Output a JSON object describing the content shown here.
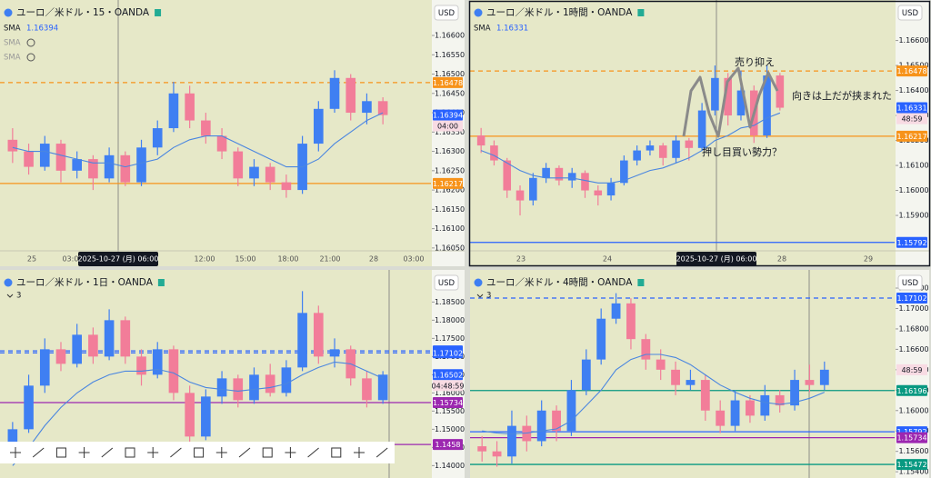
{
  "chart_data": [
    {
      "type": "candlestick",
      "title": "ユーロ／米ドル・15・OANDA",
      "currency": "USD",
      "indicators": [
        {
          "name": "SMA",
          "value": 1.16394
        },
        {
          "name": "SMA"
        },
        {
          "name": "SMA"
        }
      ],
      "ylim": [
        1.16045,
        1.1668
      ],
      "yticks": [
        {
          "value": 1.166,
          "label": "1.16600"
        },
        {
          "value": 1.1655,
          "label": "1.16550"
        },
        {
          "value": 1.165,
          "label": "1.16500"
        },
        {
          "value": 1.1645,
          "label": "1.16450"
        },
        {
          "value": 1.164,
          "label": "1.16400"
        },
        {
          "value": 1.1635,
          "label": "1.16350"
        },
        {
          "value": 1.163,
          "label": "1.16300"
        },
        {
          "value": 1.1625,
          "label": "1.16250"
        },
        {
          "value": 1.162,
          "label": "1.16200"
        },
        {
          "value": 1.1615,
          "label": "1.16150"
        },
        {
          "value": 1.161,
          "label": "1.16100"
        },
        {
          "value": 1.1605,
          "label": "1.16050"
        }
      ],
      "time_labels": [
        "25",
        "03:00",
        "12:00",
        "15:00",
        "18:00",
        "21:00",
        "28",
        "03:00"
      ],
      "crosshair_label": "2025-10-27 (月)  06:00",
      "countdown": "04:00",
      "levels": [
        {
          "value": 1.16478,
          "color": "#f7931a",
          "style": "dashed"
        },
        {
          "value": 1.16217,
          "color": "#f7931a",
          "style": "solid"
        }
      ],
      "up_color": "#3f7ff2",
      "down_color": "#f27d99",
      "sma_color": "#4a86e0",
      "ohlc": [
        [
          1.1633,
          1.1636,
          1.1627,
          1.163
        ],
        [
          1.163,
          1.1632,
          1.1624,
          1.1626
        ],
        [
          1.1626,
          1.1634,
          1.1625,
          1.1632
        ],
        [
          1.1632,
          1.1633,
          1.1622,
          1.1625
        ],
        [
          1.1625,
          1.163,
          1.1623,
          1.1628
        ],
        [
          1.1628,
          1.1629,
          1.162,
          1.1623
        ],
        [
          1.1623,
          1.1631,
          1.1622,
          1.1629
        ],
        [
          1.1629,
          1.163,
          1.1621,
          1.1622
        ],
        [
          1.1622,
          1.1633,
          1.1621,
          1.1631
        ],
        [
          1.1631,
          1.1638,
          1.1629,
          1.1636
        ],
        [
          1.1636,
          1.1648,
          1.1635,
          1.1645
        ],
        [
          1.1645,
          1.1647,
          1.1636,
          1.1638
        ],
        [
          1.1638,
          1.164,
          1.1632,
          1.1634
        ],
        [
          1.1634,
          1.1636,
          1.1628,
          1.163
        ],
        [
          1.163,
          1.1631,
          1.1621,
          1.1623
        ],
        [
          1.1623,
          1.1628,
          1.1621,
          1.1626
        ],
        [
          1.1626,
          1.1627,
          1.162,
          1.1622
        ],
        [
          1.1622,
          1.1624,
          1.1618,
          1.162
        ],
        [
          1.162,
          1.1634,
          1.1619,
          1.1632
        ],
        [
          1.1632,
          1.1643,
          1.163,
          1.1641
        ],
        [
          1.1641,
          1.1651,
          1.164,
          1.1649
        ],
        [
          1.1649,
          1.165,
          1.1638,
          1.164
        ],
        [
          1.164,
          1.1645,
          1.1637,
          1.1643
        ],
        [
          1.1643,
          1.1644,
          1.1637,
          1.16394
        ]
      ],
      "sma": [
        1.1631,
        1.163,
        1.163,
        1.1629,
        1.1628,
        1.1627,
        1.1627,
        1.1626,
        1.1627,
        1.1628,
        1.1631,
        1.1633,
        1.1634,
        1.1634,
        1.1632,
        1.163,
        1.1628,
        1.1626,
        1.1626,
        1.1628,
        1.1632,
        1.1635,
        1.1638,
        1.164
      ]
    },
    {
      "type": "candlestick",
      "title": "ユーロ／米ドル・1時間・OANDA",
      "currency": "USD",
      "indicators": [
        {
          "name": "SMA",
          "value": 1.16331
        }
      ],
      "ylim": [
        1.15762,
        1.16733
      ],
      "yticks": [
        {
          "value": 1.166,
          "label": "1.16600"
        },
        {
          "value": 1.165,
          "label": "1.16500"
        },
        {
          "value": 1.164,
          "label": "1.16400"
        },
        {
          "value": 1.163,
          "label": "1.16300"
        },
        {
          "value": 1.162,
          "label": "1.16200"
        },
        {
          "value": 1.161,
          "label": "1.16100"
        },
        {
          "value": 1.16,
          "label": "1.16000"
        },
        {
          "value": 1.159,
          "label": "1.15900"
        }
      ],
      "time_labels": [
        "23",
        "24",
        "28",
        "29"
      ],
      "crosshair_label": "2025-10-27 (月)  06:00",
      "countdown": "48:59",
      "annotations": [
        "売り抑え",
        "向きは上だが挟まれた",
        "押し目買い勢力？"
      ],
      "levels": [
        {
          "value": 1.16478,
          "color": "#f7931a",
          "style": "dashed"
        },
        {
          "value": 1.16217,
          "color": "#f7931a",
          "style": "solid"
        },
        {
          "value": 1.15792,
          "color": "#2962ff",
          "style": "solid"
        }
      ],
      "up_color": "#3f7ff2",
      "down_color": "#f27d99",
      "sma_color": "#4a86e0",
      "ohlc": [
        [
          1.1622,
          1.1625,
          1.1615,
          1.1618
        ],
        [
          1.1618,
          1.162,
          1.161,
          1.1612
        ],
        [
          1.1612,
          1.1613,
          1.1597,
          1.16
        ],
        [
          1.16,
          1.1602,
          1.159,
          1.1596
        ],
        [
          1.1596,
          1.1607,
          1.1594,
          1.1605
        ],
        [
          1.1605,
          1.1611,
          1.1603,
          1.1609
        ],
        [
          1.1609,
          1.161,
          1.1602,
          1.1604
        ],
        [
          1.1604,
          1.1609,
          1.1601,
          1.1607
        ],
        [
          1.1607,
          1.1608,
          1.1597,
          1.16
        ],
        [
          1.16,
          1.1602,
          1.1594,
          1.1598
        ],
        [
          1.1598,
          1.1605,
          1.1596,
          1.1603
        ],
        [
          1.1603,
          1.1614,
          1.1602,
          1.1612
        ],
        [
          1.1612,
          1.1618,
          1.161,
          1.1616
        ],
        [
          1.1616,
          1.162,
          1.1614,
          1.1618
        ],
        [
          1.1618,
          1.1619,
          1.161,
          1.1613
        ],
        [
          1.1613,
          1.1622,
          1.1611,
          1.162
        ],
        [
          1.162,
          1.1621,
          1.1612,
          1.1617
        ],
        [
          1.1617,
          1.1635,
          1.1616,
          1.1632
        ],
        [
          1.1632,
          1.165,
          1.163,
          1.1645
        ],
        [
          1.1645,
          1.1647,
          1.1626,
          1.163
        ],
        [
          1.163,
          1.1648,
          1.1628,
          1.164
        ],
        [
          1.164,
          1.1642,
          1.1619,
          1.1622
        ],
        [
          1.1622,
          1.165,
          1.1621,
          1.1646
        ],
        [
          1.1646,
          1.1647,
          1.1632,
          1.16331
        ]
      ],
      "sma": [
        1.1616,
        1.1614,
        1.1611,
        1.1608,
        1.1606,
        1.1605,
        1.1605,
        1.1605,
        1.1604,
        1.1603,
        1.1603,
        1.1604,
        1.1606,
        1.1608,
        1.1609,
        1.1611,
        1.1613,
        1.1616,
        1.162,
        1.1622,
        1.1625,
        1.1626,
        1.1629,
        1.1631
      ]
    },
    {
      "type": "candlestick",
      "title": "ユーロ／米ドル・1日・OANDA",
      "currency": "USD",
      "hidden_indicators": 3,
      "ylim": [
        1.13659,
        1.19059
      ],
      "yticks": [
        {
          "value": 1.185,
          "label": "1.18500"
        },
        {
          "value": 1.18,
          "label": "1.18000"
        },
        {
          "value": 1.175,
          "label": "1.17500"
        },
        {
          "value": 1.17,
          "label": "1.17000"
        },
        {
          "value": 1.165,
          "label": "1.16500"
        },
        {
          "value": 1.16,
          "label": "1.16000"
        },
        {
          "value": 1.155,
          "label": "1.15500"
        },
        {
          "value": 1.15,
          "label": "1.15000"
        },
        {
          "value": 1.145,
          "label": "1.14500"
        },
        {
          "value": 1.14,
          "label": "1.14000"
        }
      ],
      "countdown": "04:48:59",
      "levels": [
        {
          "value": 1.17155,
          "color": "#2962ff",
          "style": "dashed"
        },
        {
          "value": 1.17102,
          "color": "#2962ff",
          "style": "dashed"
        },
        {
          "value": 1.15734,
          "color": "#9c27b0",
          "style": "solid"
        },
        {
          "value": 1.1458,
          "color": "#9c27b0",
          "style": "solid"
        }
      ],
      "up_color": "#3f7ff2",
      "down_color": "#f27d99",
      "sma_color": "#4a86e0",
      "ohlc": [
        [
          1.145,
          1.152,
          1.142,
          1.15
        ],
        [
          1.15,
          1.165,
          1.149,
          1.162
        ],
        [
          1.162,
          1.175,
          1.16,
          1.172
        ],
        [
          1.172,
          1.174,
          1.166,
          1.168
        ],
        [
          1.168,
          1.179,
          1.167,
          1.176
        ],
        [
          1.176,
          1.178,
          1.168,
          1.17
        ],
        [
          1.17,
          1.183,
          1.169,
          1.18
        ],
        [
          1.18,
          1.181,
          1.168,
          1.17
        ],
        [
          1.17,
          1.172,
          1.162,
          1.165
        ],
        [
          1.165,
          1.174,
          1.164,
          1.172
        ],
        [
          1.172,
          1.173,
          1.158,
          1.16
        ],
        [
          1.16,
          1.162,
          1.142,
          1.148
        ],
        [
          1.148,
          1.161,
          1.147,
          1.159
        ],
        [
          1.159,
          1.166,
          1.157,
          1.164
        ],
        [
          1.164,
          1.165,
          1.156,
          1.158
        ],
        [
          1.158,
          1.167,
          1.157,
          1.165
        ],
        [
          1.165,
          1.168,
          1.159,
          1.16
        ],
        [
          1.16,
          1.169,
          1.159,
          1.167
        ],
        [
          1.167,
          1.188,
          1.166,
          1.182
        ],
        [
          1.182,
          1.184,
          1.168,
          1.17
        ],
        [
          1.17,
          1.175,
          1.167,
          1.172
        ],
        [
          1.172,
          1.173,
          1.162,
          1.164
        ],
        [
          1.164,
          1.166,
          1.156,
          1.158
        ],
        [
          1.158,
          1.166,
          1.157,
          1.16502
        ]
      ],
      "sma": [
        1.14,
        1.145,
        1.151,
        1.156,
        1.16,
        1.163,
        1.165,
        1.166,
        1.166,
        1.1665,
        1.1655,
        1.163,
        1.1615,
        1.161,
        1.1605,
        1.161,
        1.1615,
        1.1625,
        1.165,
        1.167,
        1.1685,
        1.168,
        1.166,
        1.164
      ]
    },
    {
      "type": "candlestick",
      "title": "ユーロ／米ドル・4時間・OANDA",
      "currency": "USD",
      "hidden_indicators": 3,
      "ylim": [
        1.15339,
        1.17307
      ],
      "yticks": [
        {
          "value": 1.172,
          "label": "1.17200"
        },
        {
          "value": 1.17,
          "label": "1.17000"
        },
        {
          "value": 1.168,
          "label": "1.16800"
        },
        {
          "value": 1.166,
          "label": "1.16600"
        },
        {
          "value": 1.164,
          "label": "1.16400"
        },
        {
          "value": 1.162,
          "label": "1.16200"
        },
        {
          "value": 1.16,
          "label": "1.16000"
        },
        {
          "value": 1.158,
          "label": "1.15800"
        },
        {
          "value": 1.156,
          "label": "1.15600"
        },
        {
          "value": 1.154,
          "label": "1.15400"
        }
      ],
      "countdown": "48:59",
      "levels": [
        {
          "value": 1.17102,
          "color": "#2962ff",
          "style": "dashed"
        },
        {
          "value": 1.16196,
          "color": "#089981",
          "style": "solid"
        },
        {
          "value": 1.15792,
          "color": "#2962ff",
          "style": "solid"
        },
        {
          "value": 1.15734,
          "color": "#9c27b0",
          "style": "solid"
        },
        {
          "value": 1.15472,
          "color": "#089981",
          "style": "solid"
        }
      ],
      "up_color": "#3f7ff2",
      "down_color": "#f27d99",
      "sma_color": "#4a86e0",
      "ohlc": [
        [
          1.1565,
          1.1575,
          1.155,
          1.156
        ],
        [
          1.156,
          1.157,
          1.1545,
          1.1555
        ],
        [
          1.1555,
          1.16,
          1.1548,
          1.1585
        ],
        [
          1.1585,
          1.1595,
          1.156,
          1.157
        ],
        [
          1.157,
          1.161,
          1.1565,
          1.16
        ],
        [
          1.16,
          1.1605,
          1.157,
          1.158
        ],
        [
          1.158,
          1.163,
          1.1575,
          1.162
        ],
        [
          1.162,
          1.166,
          1.1615,
          1.165
        ],
        [
          1.165,
          1.17,
          1.1645,
          1.169
        ],
        [
          1.169,
          1.1715,
          1.1685,
          1.1705
        ],
        [
          1.1705,
          1.171,
          1.166,
          1.167
        ],
        [
          1.167,
          1.1675,
          1.164,
          1.165
        ],
        [
          1.165,
          1.166,
          1.163,
          1.164
        ],
        [
          1.164,
          1.1648,
          1.1615,
          1.1625
        ],
        [
          1.1625,
          1.164,
          1.162,
          1.163
        ],
        [
          1.163,
          1.1635,
          1.159,
          1.16
        ],
        [
          1.16,
          1.161,
          1.1578,
          1.1585
        ],
        [
          1.1585,
          1.162,
          1.158,
          1.161
        ],
        [
          1.161,
          1.1615,
          1.1588,
          1.1595
        ],
        [
          1.1595,
          1.1625,
          1.159,
          1.1615
        ],
        [
          1.1615,
          1.162,
          1.1598,
          1.1605
        ],
        [
          1.1605,
          1.164,
          1.16,
          1.163
        ],
        [
          1.163,
          1.1645,
          1.1618,
          1.1625
        ],
        [
          1.1625,
          1.1648,
          1.162,
          1.164
        ]
      ],
      "sma": [
        1.158,
        1.1578,
        1.1577,
        1.1578,
        1.158,
        1.1582,
        1.159,
        1.1605,
        1.162,
        1.164,
        1.165,
        1.1655,
        1.1655,
        1.1652,
        1.1645,
        1.1635,
        1.1625,
        1.1618,
        1.1612,
        1.1608,
        1.1606,
        1.1608,
        1.1612,
        1.1618
      ]
    }
  ]
}
